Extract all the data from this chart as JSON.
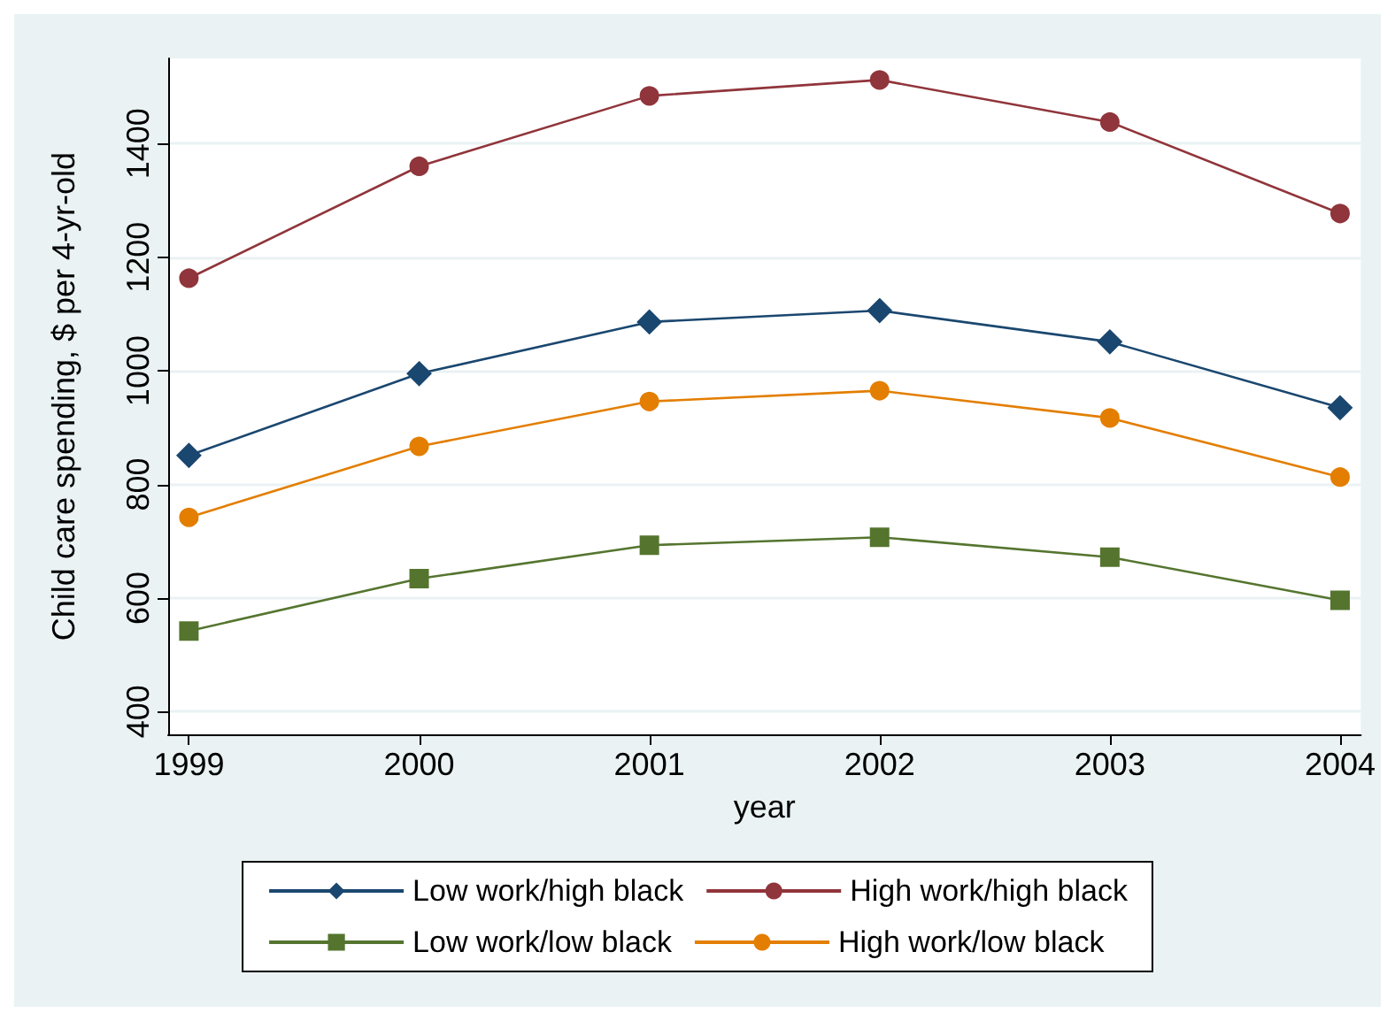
{
  "chart_data": {
    "type": "line",
    "xlabel": "year",
    "ylabel": "Child care spending, $ per 4-yr-old",
    "x": [
      1999,
      2000,
      2001,
      2002,
      2003,
      2004
    ],
    "series": [
      {
        "name": "Low work/high black",
        "color": "#1a476f",
        "marker": "diamond",
        "values": [
          851,
          995,
          1086,
          1106,
          1051,
          935
        ]
      },
      {
        "name": "High work/high black",
        "color": "#90353b",
        "marker": "circle",
        "values": [
          1163,
          1360,
          1484,
          1512,
          1438,
          1277
        ]
      },
      {
        "name": "Low work/low black",
        "color": "#55752f",
        "marker": "square",
        "values": [
          542,
          634,
          693,
          707,
          672,
          596
        ]
      },
      {
        "name": "High work/low black",
        "color": "#e37e00",
        "marker": "circle",
        "values": [
          742,
          867,
          946,
          965,
          917,
          813
        ]
      }
    ],
    "xlim": [
      1998.91,
      2004.09
    ],
    "xticks": [
      1999,
      2000,
      2001,
      2002,
      2003,
      2004
    ],
    "ylim": [
      360,
      1550
    ],
    "yticks": [
      400,
      600,
      800,
      1000,
      1200,
      1400
    ],
    "grid": "y",
    "legend": "bottom",
    "line_style": "solid"
  }
}
